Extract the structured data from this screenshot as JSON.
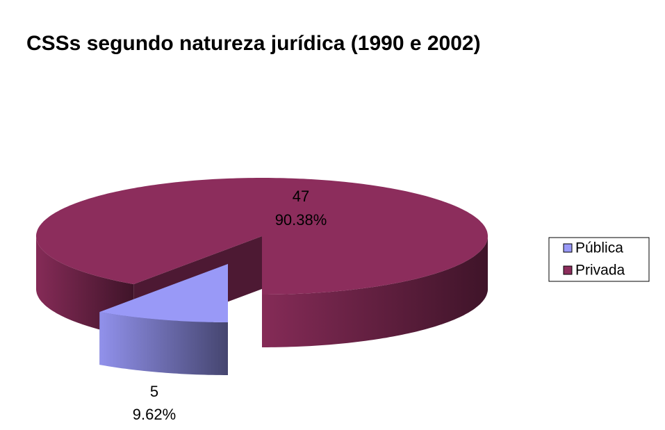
{
  "chart_data": {
    "type": "pie3d",
    "title": "CSSs segundo natureza jurídica (1990 e 2002)",
    "categories": [
      "Pública",
      "Privada"
    ],
    "values": [
      5,
      47
    ],
    "shares": [
      9.62,
      90.38
    ],
    "share_labels": [
      "9.62%",
      "90.38%"
    ],
    "colors": [
      "#9999f7",
      "#8c2d5c"
    ],
    "legend": "right"
  }
}
